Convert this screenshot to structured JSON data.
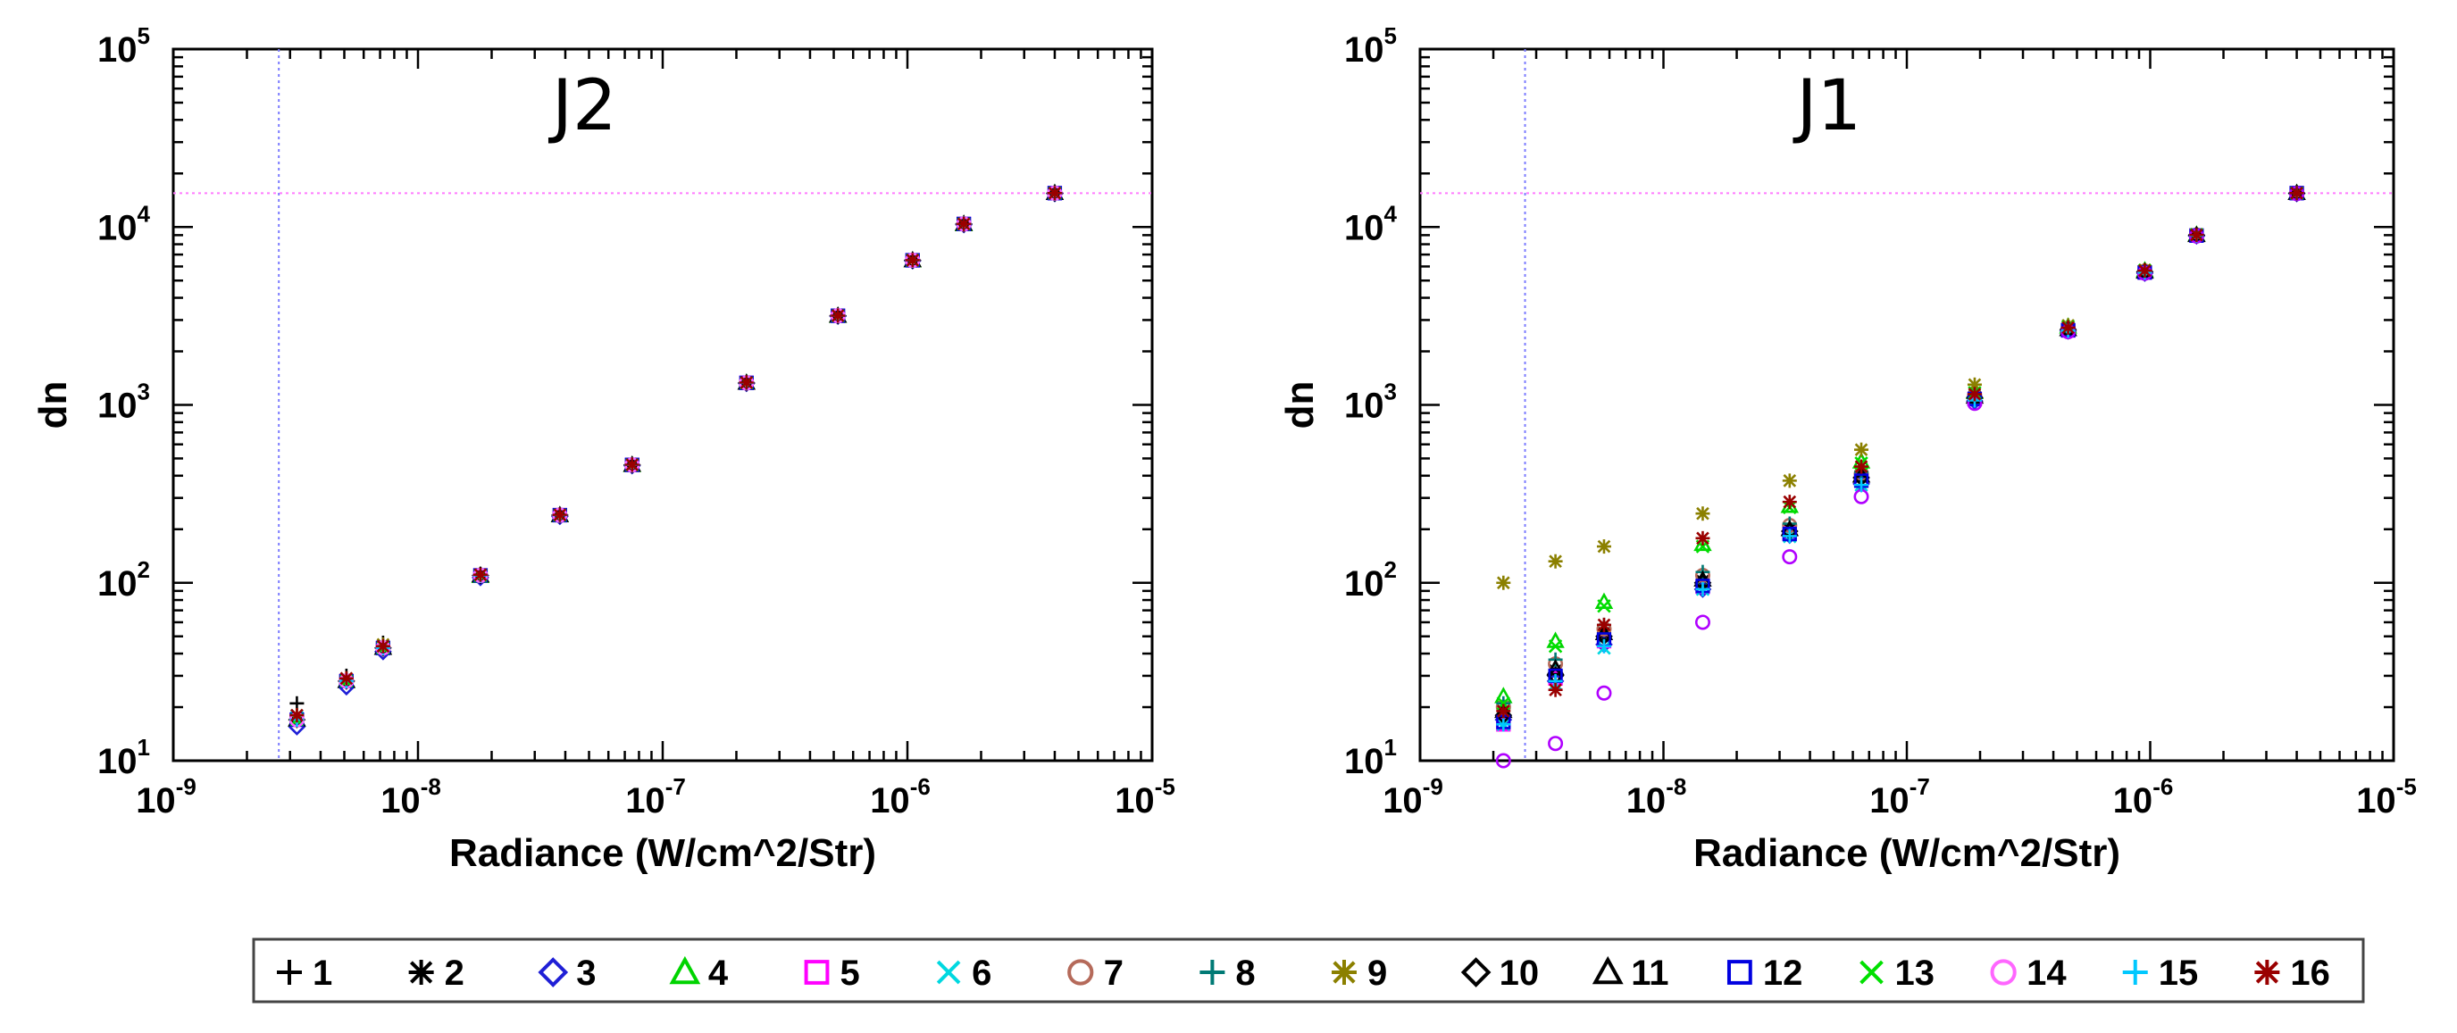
{
  "chart_data": [
    {
      "type": "scatter",
      "title": "J2",
      "xlabel": "Radiance (W/cm^2/Str)",
      "ylabel": "dn",
      "xscale": "log",
      "yscale": "log",
      "xlim": [
        1e-09,
        1e-05
      ],
      "ylim": [
        10,
        100000
      ],
      "xticks": [
        "10-9",
        "10-8",
        "10-7",
        "10-6",
        "10-5"
      ],
      "yticks": [
        "101",
        "102",
        "103",
        "104",
        "105"
      ],
      "reference_lines": {
        "vertical_x": 2.7e-09,
        "horizontal_y": 15500
      },
      "x": [
        3.2e-09,
        5.1e-09,
        7.2e-09,
        1.8e-08,
        3.8e-08,
        7.5e-08,
        2.2e-07,
        5.2e-07,
        1.05e-06,
        1.7e-06,
        4e-06
      ],
      "series": [
        {
          "name": "1",
          "values": [
            21,
            30,
            46,
            112,
            242,
            462,
            1340,
            3180,
            6520,
            10400,
            15600
          ]
        },
        {
          "name": "2",
          "values": [
            18,
            28,
            44,
            110,
            240,
            460,
            1330,
            3170,
            6500,
            10400,
            15500
          ]
        },
        {
          "name": "3",
          "values": [
            15.5,
            26,
            41,
            107,
            236,
            455,
            1320,
            3150,
            6450,
            10300,
            15400
          ]
        },
        {
          "name": "4",
          "values": [
            17,
            28,
            43,
            109,
            239,
            458,
            1330,
            3160,
            6480,
            10350,
            15500
          ]
        },
        {
          "name": "5",
          "values": [
            17,
            28,
            43,
            110,
            240,
            460,
            1330,
            3170,
            6500,
            10400,
            15500
          ]
        },
        {
          "name": "6",
          "values": [
            17.5,
            28,
            44,
            110,
            240,
            460,
            1330,
            3170,
            6500,
            10400,
            15500
          ]
        },
        {
          "name": "7",
          "values": [
            17,
            28,
            43,
            110,
            240,
            460,
            1330,
            3170,
            6500,
            10400,
            15500
          ]
        },
        {
          "name": "8",
          "values": [
            17,
            28,
            43,
            110,
            240,
            460,
            1330,
            3170,
            6500,
            10400,
            15500
          ]
        },
        {
          "name": "9",
          "values": [
            18,
            29,
            45,
            111,
            241,
            461,
            1335,
            3175,
            6510,
            10400,
            15500
          ]
        },
        {
          "name": "10",
          "values": [
            17,
            28,
            43,
            110,
            240,
            460,
            1330,
            3170,
            6500,
            10400,
            15500
          ]
        },
        {
          "name": "11",
          "values": [
            17,
            28,
            43,
            110,
            240,
            460,
            1330,
            3170,
            6500,
            10400,
            15500
          ]
        },
        {
          "name": "12",
          "values": [
            17,
            28,
            43,
            110,
            240,
            460,
            1330,
            3170,
            6500,
            10400,
            15500
          ]
        },
        {
          "name": "13",
          "values": [
            17,
            28,
            43,
            110,
            240,
            460,
            1330,
            3170,
            6500,
            10400,
            15500
          ]
        },
        {
          "name": "14",
          "values": [
            17,
            28,
            43,
            110,
            240,
            460,
            1330,
            3170,
            6500,
            10400,
            15500
          ]
        },
        {
          "name": "15",
          "values": [
            17,
            28,
            43,
            110,
            240,
            460,
            1330,
            3170,
            6500,
            10400,
            15500
          ]
        },
        {
          "name": "16",
          "values": [
            18,
            29,
            44,
            111,
            241,
            461,
            1335,
            3175,
            6510,
            10400,
            15500
          ]
        }
      ]
    },
    {
      "type": "scatter",
      "title": "J1",
      "xlabel": "Radiance (W/cm^2/Str)",
      "ylabel": "dn",
      "xscale": "log",
      "yscale": "log",
      "xlim": [
        1e-09,
        1e-05
      ],
      "ylim": [
        10,
        100000
      ],
      "xticks": [
        "10-9",
        "10-8",
        "10-7",
        "10-6",
        "10-5"
      ],
      "yticks": [
        "101",
        "102",
        "103",
        "104",
        "105"
      ],
      "reference_lines": {
        "vertical_x": 2.7e-09,
        "horizontal_y": 15500
      },
      "x": [
        2.2e-09,
        3.6e-09,
        5.7e-09,
        1.45e-08,
        3.3e-08,
        6.5e-08,
        1.9e-07,
        4.6e-07,
        9.5e-07,
        1.55e-06,
        4e-06
      ],
      "series": [
        {
          "name": "1",
          "values": [
            17,
            30,
            50,
            98,
            195,
            390,
            1100,
            2650,
            5600,
            9000,
            15500
          ]
        },
        {
          "name": "2",
          "values": [
            18,
            32,
            52,
            102,
            200,
            400,
            1120,
            2680,
            5650,
            9000,
            15500
          ]
        },
        {
          "name": "3",
          "values": [
            17,
            28,
            45,
            92,
            185,
            360,
            1050,
            2600,
            5500,
            8900,
            15400
          ]
        },
        {
          "name": "4",
          "values": [
            23,
            47,
            78,
            165,
            270,
            480,
            1180,
            2750,
            5700,
            9050,
            15500
          ]
        },
        {
          "name": "5",
          "values": [
            16,
            29,
            47,
            95,
            190,
            380,
            1080,
            2620,
            5550,
            8950,
            15500
          ]
        },
        {
          "name": "6",
          "values": [
            16,
            27,
            43,
            92,
            182,
            355,
            1060,
            2610,
            5550,
            8950,
            15500
          ]
        },
        {
          "name": "7",
          "values": [
            20,
            35,
            55,
            110,
            210,
            410,
            1120,
            2680,
            5650,
            9000,
            15500
          ]
        },
        {
          "name": "8",
          "values": [
            21,
            37,
            58,
            115,
            215,
            420,
            1130,
            2690,
            5650,
            9000,
            15500
          ]
        },
        {
          "name": "9",
          "values": [
            100,
            132,
            160,
            245,
            375,
            560,
            1300,
            2800,
            5750,
            9100,
            15500
          ]
        },
        {
          "name": "10",
          "values": [
            18,
            30,
            50,
            100,
            195,
            390,
            1100,
            2650,
            5600,
            9000,
            15500
          ]
        },
        {
          "name": "11",
          "values": [
            19,
            33,
            52,
            104,
            200,
            400,
            1110,
            2660,
            5600,
            9000,
            15500
          ]
        },
        {
          "name": "12",
          "values": [
            16.5,
            30,
            48,
            96,
            188,
            375,
            1080,
            2630,
            5550,
            8950,
            15500
          ]
        },
        {
          "name": "13",
          "values": [
            21,
            44,
            74,
            160,
            265,
            470,
            1170,
            2740,
            5700,
            9050,
            15500
          ]
        },
        {
          "name": "14",
          "values": [
            10,
            12.5,
            24,
            60,
            140,
            305,
            1020,
            2580,
            5500,
            8900,
            15400
          ]
        },
        {
          "name": "15",
          "values": [
            16,
            28,
            44,
            92,
            183,
            355,
            1060,
            2610,
            5550,
            8950,
            15500
          ]
        },
        {
          "name": "16",
          "values": [
            19,
            25,
            58,
            178,
            285,
            450,
            1150,
            2720,
            5680,
            9020,
            15500
          ]
        }
      ]
    }
  ],
  "legend": {
    "entries": [
      {
        "label": "1",
        "symbol": "plus",
        "color": "#000000"
      },
      {
        "label": "2",
        "symbol": "asterisk",
        "color": "#000000"
      },
      {
        "label": "3",
        "symbol": "diamond",
        "color": "#1f1fd6"
      },
      {
        "label": "4",
        "symbol": "triangle",
        "color": "#00d400"
      },
      {
        "label": "5",
        "symbol": "square",
        "color": "#ff00ff"
      },
      {
        "label": "6",
        "symbol": "x",
        "color": "#00d8e0"
      },
      {
        "label": "7",
        "symbol": "circle",
        "color": "#b56a5a"
      },
      {
        "label": "8",
        "symbol": "plus",
        "color": "#007a75"
      },
      {
        "label": "9",
        "symbol": "asterisk",
        "color": "#8b8000"
      },
      {
        "label": "10",
        "symbol": "diamond",
        "color": "#000000"
      },
      {
        "label": "11",
        "symbol": "triangle",
        "color": "#000000"
      },
      {
        "label": "12",
        "symbol": "square",
        "color": "#0000e0"
      },
      {
        "label": "13",
        "symbol": "x",
        "color": "#00e000"
      },
      {
        "label": "14",
        "symbol": "circle",
        "color": "#ff66ff"
      },
      {
        "label": "15",
        "symbol": "plus",
        "color": "#00c8ff"
      },
      {
        "label": "16",
        "symbol": "asterisk",
        "color": "#9a0000"
      }
    ]
  },
  "colors": {
    "reference_vertical": "#7b7bff",
    "reference_horizontal": "#ff7bff",
    "j1_series14_marker": "#b000ff"
  }
}
